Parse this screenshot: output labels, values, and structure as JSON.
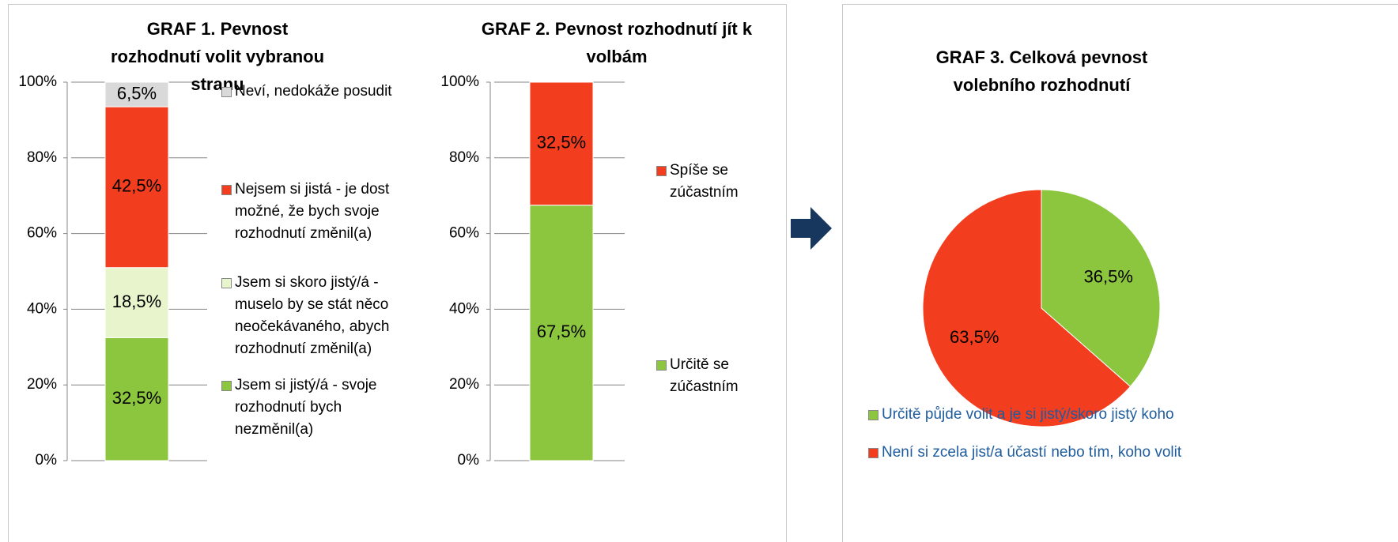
{
  "chart_data": [
    {
      "type": "stacked_bar",
      "title": "GRAF 1. Pevnost rozhodnutí volit vybranou stranu",
      "categories": [
        null
      ],
      "ylim": [
        0,
        100
      ],
      "yticks": [
        {
          "value": 0,
          "label": "0%"
        },
        {
          "value": 20,
          "label": "20%"
        },
        {
          "value": 40,
          "label": "40%"
        },
        {
          "value": 60,
          "label": "60%"
        },
        {
          "value": 80,
          "label": "80%"
        },
        {
          "value": 100,
          "label": "100%"
        }
      ],
      "grid": true,
      "series": [
        {
          "name": "Jsem si jistý/á - svoje rozhodnutí bych nezměnil(a)",
          "color": "#8cc63e",
          "values": [
            32.5
          ],
          "value_labels": [
            "32,5%"
          ]
        },
        {
          "name": "Jsem si skoro jistý/á - muselo by se stát něco neočekávaného, abych rozhodnutí změnil(a)",
          "color": "#e8f5cc",
          "values": [
            18.5
          ],
          "value_labels": [
            "18,5%"
          ]
        },
        {
          "name": "Nejsem si jistá - je dost možné, že bych svoje rozhodnutí změnil(a)",
          "color": "#f23d1f",
          "values": [
            42.5
          ],
          "value_labels": [
            "42,5%"
          ]
        },
        {
          "name": "Neví, nedokáže posudit",
          "color": "#d9d9d9",
          "values": [
            6.5
          ],
          "value_labels": [
            "6,5%"
          ]
        }
      ]
    },
    {
      "type": "stacked_bar",
      "title": "GRAF 2. Pevnost rozhodnutí jít k volbám",
      "categories": [
        null
      ],
      "ylim": [
        0,
        100
      ],
      "yticks": [
        {
          "value": 0,
          "label": "0%"
        },
        {
          "value": 20,
          "label": "20%"
        },
        {
          "value": 40,
          "label": "40%"
        },
        {
          "value": 60,
          "label": "60%"
        },
        {
          "value": 80,
          "label": "80%"
        },
        {
          "value": 100,
          "label": "100%"
        }
      ],
      "grid": true,
      "series": [
        {
          "name": "Určitě se zúčastním",
          "color": "#8cc63e",
          "values": [
            67.5
          ],
          "value_labels": [
            "67,5%"
          ]
        },
        {
          "name": "Spíše se zúčastním",
          "color": "#f23d1f",
          "values": [
            32.5
          ],
          "value_labels": [
            "32,5%"
          ]
        }
      ]
    },
    {
      "type": "pie",
      "title": "GRAF 3. Celková pevnost volebního rozhodnutí",
      "categories": [
        "Určitě půjde volit a je si jistý/skoro jistý koho",
        "Není si zcela jist/a účastí nebo tím, koho volit"
      ],
      "values": [
        36.5,
        63.5
      ],
      "value_labels": [
        "36,5%",
        "63,5%"
      ],
      "colors": [
        "#8cc63e",
        "#f23d1f"
      ]
    }
  ]
}
